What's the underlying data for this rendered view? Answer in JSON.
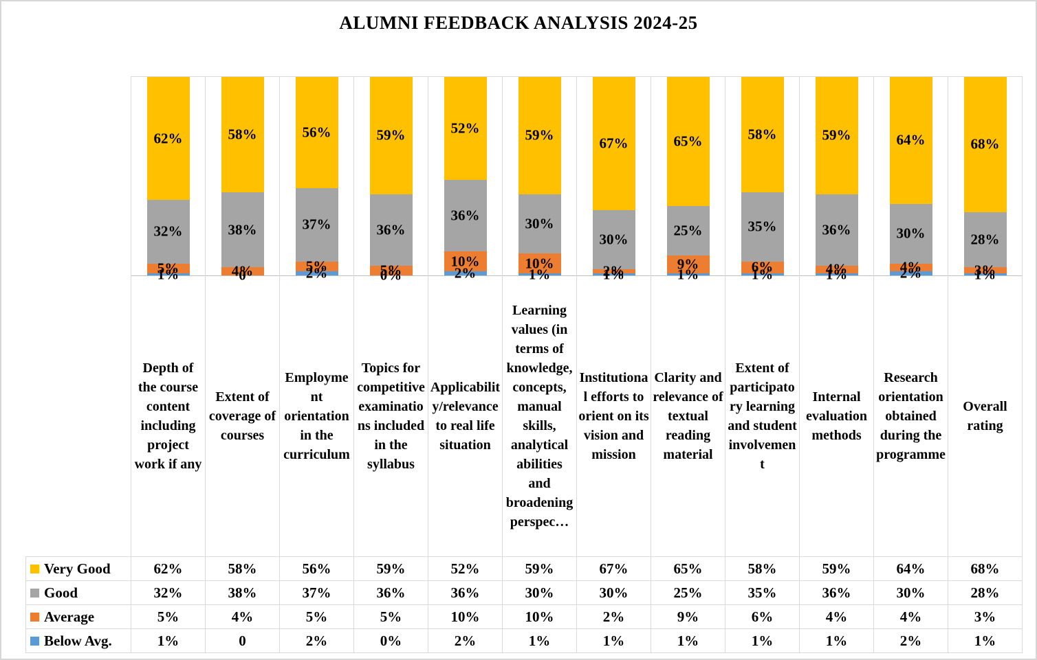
{
  "chart_data": {
    "type": "bar",
    "stacked": true,
    "percent_stacked": true,
    "title": "ALUMNI FEEDBACK ANALYSIS 2024-25",
    "xlabel": "",
    "ylabel": "",
    "ylim": [
      0,
      100
    ],
    "gridlines": "vertical-category-separators",
    "legend_position": "left-column-of-data-table",
    "data_table_shown": true,
    "categories": [
      "Depth of the course content including project work if any",
      "Extent of coverage of courses",
      "Employment orientation in the curriculum",
      "Topics for competitive examinations included in the syllabus",
      "Applicability/relevance to real life situation",
      "Learning values (in terms of knowledge, concepts, manual skills, analytical abilities and broadening perspec…",
      "Institutional efforts to orient on its vision and mission",
      "Clarity and relevance of textual reading material",
      "Extent of participatory learning and student involvement",
      "Internal evaluation methods",
      "Research orientation obtained during the programme",
      "Overall rating"
    ],
    "series": [
      {
        "name": "Very Good",
        "color": "#FFC000",
        "values": [
          62,
          58,
          56,
          59,
          52,
          59,
          67,
          65,
          58,
          59,
          64,
          68
        ],
        "labels": [
          "62%",
          "58%",
          "56%",
          "59%",
          "52%",
          "59%",
          "67%",
          "65%",
          "58%",
          "59%",
          "64%",
          "68%"
        ]
      },
      {
        "name": "Good",
        "color": "#A5A5A5",
        "values": [
          32,
          38,
          37,
          36,
          36,
          30,
          30,
          25,
          35,
          36,
          30,
          28
        ],
        "labels": [
          "32%",
          "38%",
          "37%",
          "36%",
          "36%",
          "30%",
          "30%",
          "25%",
          "35%",
          "36%",
          "30%",
          "28%"
        ]
      },
      {
        "name": "Average",
        "color": "#ED7D31",
        "values": [
          5,
          4,
          5,
          5,
          10,
          10,
          2,
          9,
          6,
          4,
          4,
          3
        ],
        "labels": [
          "5%",
          "4%",
          "5%",
          "5%",
          "10%",
          "10%",
          "2%",
          "9%",
          "6%",
          "4%",
          "4%",
          "3%"
        ]
      },
      {
        "name": "Below Avg.",
        "color": "#5B9BD5",
        "values": [
          1,
          0,
          2,
          0,
          2,
          1,
          1,
          1,
          1,
          1,
          2,
          1
        ],
        "labels": [
          "1%",
          "0",
          "2%",
          "0%",
          "2%",
          "1%",
          "1%",
          "1%",
          "1%",
          "1%",
          "2%",
          "1%"
        ]
      }
    ],
    "stack_order_bottom_to_top": [
      "Below Avg.",
      "Average",
      "Good",
      "Very Good"
    ],
    "colors": {
      "gridline": "#D9D9D9",
      "axis_line": "#BFBFBF",
      "frame_border": "#D6D6D6",
      "label_text": "#000000"
    }
  }
}
